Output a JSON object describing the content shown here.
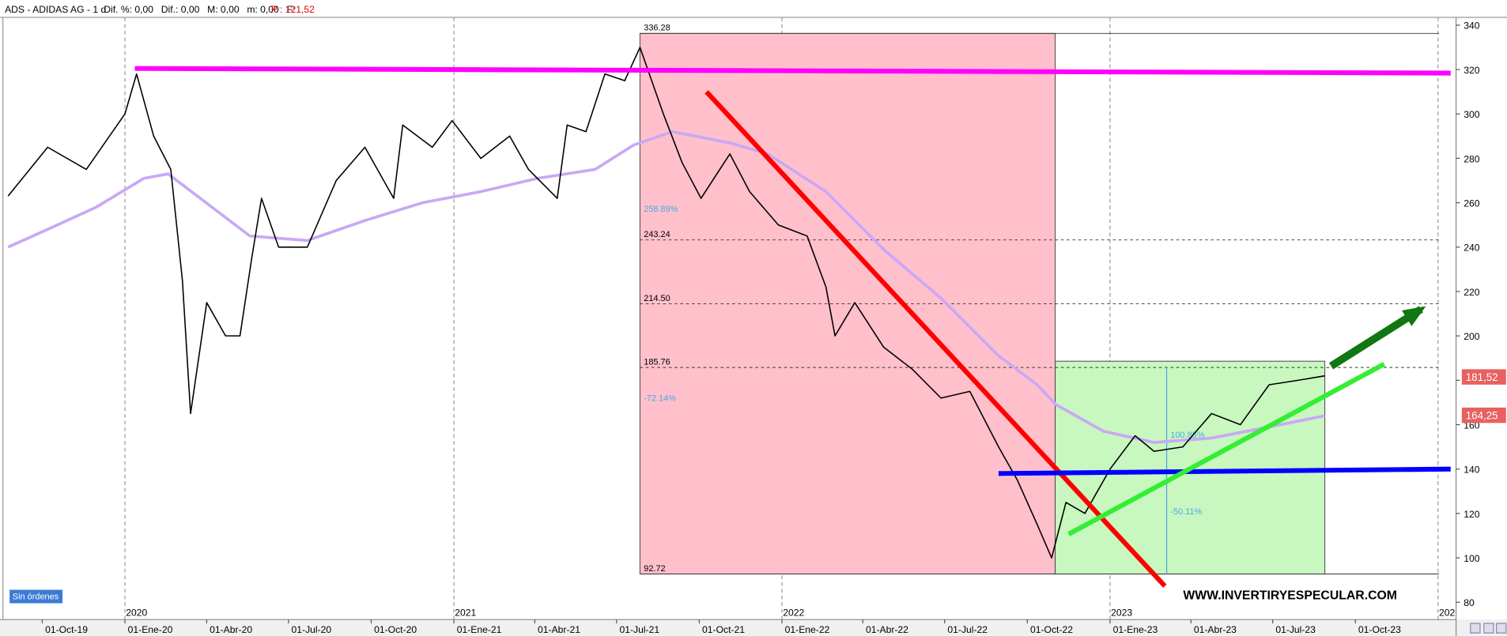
{
  "header": {
    "symbol": "ADS - ADIDAS AG - 1 d",
    "fields": [
      "Dif. %: 0,00",
      "Dif.: 0,00",
      "M: 0,00",
      "m: 0,00",
      "F:"
    ],
    "price": "P : 121,52"
  },
  "orders_button": "Sin órdenes",
  "watermark": "WWW.INVERTIRYESPECULAR.COM",
  "chart_data": {
    "type": "line",
    "xlim": [
      "2019-08-15",
      "2024-01-21"
    ],
    "ylim": [
      72.2,
      343.5
    ],
    "yticks": [
      80,
      100,
      120,
      140,
      160,
      180,
      200,
      220,
      240,
      260,
      280,
      300,
      320,
      340
    ],
    "xticks": [
      {
        "value": "2019-10-01",
        "label": "01-Oct-19"
      },
      {
        "value": "2020-01-01",
        "label": "01-Ene-20"
      },
      {
        "value": "2020-04-01",
        "label": "01-Abr-20"
      },
      {
        "value": "2020-07-01",
        "label": "01-Jul-20"
      },
      {
        "value": "2020-10-01",
        "label": "01-Oct-20"
      },
      {
        "value": "2021-01-01",
        "label": "01-Ene-21"
      },
      {
        "value": "2021-04-01",
        "label": "01-Abr-21"
      },
      {
        "value": "2021-07-01",
        "label": "01-Jul-21"
      },
      {
        "value": "2021-10-01",
        "label": "01-Oct-21"
      },
      {
        "value": "2022-01-01",
        "label": "01-Ene-22"
      },
      {
        "value": "2022-04-01",
        "label": "01-Abr-22"
      },
      {
        "value": "2022-07-01",
        "label": "01-Jul-22"
      },
      {
        "value": "2022-10-01",
        "label": "01-Oct-22"
      },
      {
        "value": "2023-01-01",
        "label": "01-Ene-23"
      },
      {
        "value": "2023-04-01",
        "label": "01-Abr-23"
      },
      {
        "value": "2023-07-01",
        "label": "01-Jul-23"
      },
      {
        "value": "2023-10-01",
        "label": "01-Oct-23"
      }
    ],
    "year_ticks": [
      {
        "value": "2020-01-01",
        "label": "2020"
      },
      {
        "value": "2021-01-01",
        "label": "2021"
      },
      {
        "value": "2022-01-01",
        "label": "2022"
      },
      {
        "value": "2023-01-01",
        "label": "2023"
      },
      {
        "value": "2024-01-01",
        "label": "202"
      }
    ],
    "series": [
      {
        "color": "#000000",
        "x": [
          "2019-08-24",
          "2019-10-07",
          "2019-11-19",
          "2020-01-01",
          "2020-01-14",
          "2020-02-02",
          "2020-02-21",
          "2020-03-05",
          "2020-03-14",
          "2020-04-01",
          "2020-04-22",
          "2020-05-08",
          "2020-05-21",
          "2020-06-01",
          "2020-06-20",
          "2020-07-22",
          "2020-08-23",
          "2020-09-24",
          "2020-10-26",
          "2020-11-05",
          "2020-12-08",
          "2020-12-30",
          "2021-01-31",
          "2021-03-04",
          "2021-03-25",
          "2021-04-26",
          "2021-05-07",
          "2021-05-28",
          "2021-06-18",
          "2021-07-10",
          "2021-07-27",
          "2021-08-22",
          "2021-09-12",
          "2021-10-03",
          "2021-11-04",
          "2021-11-26",
          "2021-12-28",
          "2022-01-29",
          "2022-02-19",
          "2022-03-01",
          "2022-03-23",
          "2022-04-24",
          "2022-05-26",
          "2022-06-27",
          "2022-07-29",
          "2022-08-30",
          "2022-09-20",
          "2022-10-12",
          "2022-10-28",
          "2022-11-13",
          "2022-12-04",
          "2023-01-01",
          "2023-01-29",
          "2023-02-19",
          "2023-03-23",
          "2023-04-24",
          "2023-05-26",
          "2023-06-27",
          "2023-07-29",
          "2023-08-28"
        ],
        "values": [
          263,
          285,
          275,
          300,
          318,
          290,
          275,
          225,
          165,
          215,
          200,
          200,
          235,
          262,
          240,
          240,
          270,
          285,
          262,
          295,
          285,
          297,
          280,
          290,
          275,
          262,
          295,
          292,
          318,
          315,
          330,
          300,
          278,
          262,
          282,
          265,
          250,
          245,
          222,
          200,
          215,
          195,
          185,
          172,
          175,
          150,
          135,
          115,
          100,
          125,
          120,
          140,
          155,
          148,
          150,
          165,
          160,
          178,
          180,
          182
        ]
      },
      {
        "color": "#c9a8f5",
        "x": [
          "2019-08-24",
          "2019-10-07",
          "2019-11-30",
          "2020-01-22",
          "2020-02-18",
          "2020-03-15",
          "2020-05-19",
          "2020-07-22",
          "2020-09-24",
          "2020-11-27",
          "2021-01-31",
          "2021-04-04",
          "2021-06-07",
          "2021-07-20",
          "2021-09-01",
          "2021-11-04",
          "2021-12-16",
          "2022-02-19",
          "2022-04-24",
          "2022-06-27",
          "2022-08-30",
          "2022-10-12",
          "2022-11-02",
          "2022-12-25",
          "2023-02-19",
          "2023-04-24",
          "2023-06-27",
          "2023-08-28"
        ],
        "values": [
          240,
          248,
          258,
          271,
          273,
          265,
          245,
          243,
          252,
          260,
          265,
          271,
          275,
          286,
          292,
          287,
          282,
          265,
          239,
          217,
          191,
          178,
          169,
          157,
          152,
          154,
          159,
          164
        ]
      }
    ],
    "boxes": [
      {
        "color": "#ffc0cb",
        "x": [
          "2021-07-27",
          "2022-11-01"
        ],
        "y": [
          92.72,
          336.28
        ],
        "up_label": "258.89%",
        "down_label": "-72.14%"
      },
      {
        "color": "#c8f7c0",
        "x": [
          "2022-11-01",
          "2023-08-28"
        ],
        "y": [
          92.72,
          188.6
        ],
        "up_label": "100.85%",
        "down_label": "-50.11%"
      }
    ],
    "levels": [
      {
        "value": 336.28,
        "style": "solid"
      },
      {
        "value": 243.24,
        "style": "dashed"
      },
      {
        "value": {
          "value": 214.5,
          "label": "214.50"
        },
        "style": "dashed"
      },
      {
        "value": 185.76,
        "style": "dashed"
      },
      {
        "value": 92.72,
        "style": "solid"
      }
    ],
    "levels_x": [
      "2021-07-27",
      "2024-01-02"
    ],
    "drawings": [
      {
        "color": "#ff00ff",
        "width": 5,
        "x": [
          "2020-01-12",
          "2024-01-15"
        ],
        "y": [
          320.5,
          318.4
        ]
      },
      {
        "color": "#ff0000",
        "width": 5,
        "x": [
          "2021-10-09",
          "2023-03-03"
        ],
        "y": [
          310,
          87.3
        ]
      },
      {
        "color": "#0000ff",
        "width": 5,
        "x": [
          "2022-08-30",
          "2024-01-15"
        ],
        "y": [
          138,
          140
        ]
      },
      {
        "color": "#33ee33",
        "width": 5,
        "x": [
          "2022-11-16",
          "2023-11-02"
        ],
        "y": [
          110.7,
          187.3
        ]
      },
      {
        "color": "#117711",
        "width": 8,
        "x": [
          "2023-09-04",
          "2023-12-13"
        ],
        "y": [
          186.4,
          212
        ],
        "arrow": true
      }
    ],
    "measure": {
      "color": "#4aa8e8",
      "x": "2023-03-05",
      "y": [
        185.76,
        92.72
      ]
    },
    "last_prices": [
      {
        "value": 181.52,
        "label": "181,52",
        "color": "#e86060"
      },
      {
        "value": 164.25,
        "label": "164,25",
        "color": "#e86060"
      }
    ]
  }
}
